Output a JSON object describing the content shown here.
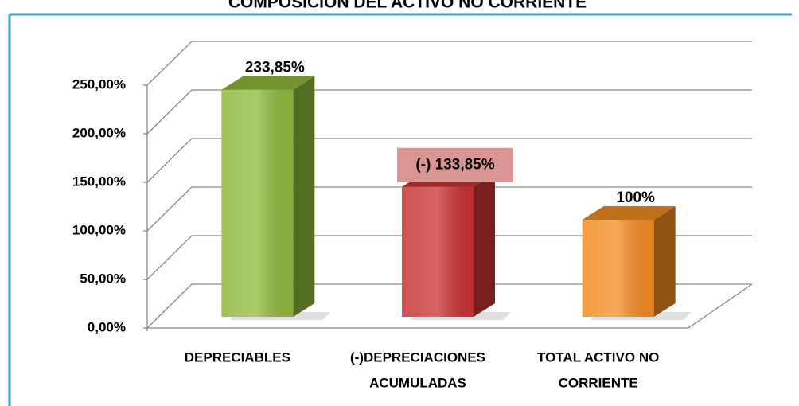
{
  "chart_data": {
    "type": "bar3d",
    "title": "COMPOSICIÓN DEL ACTIVO NO CORRIENTE",
    "categories": [
      [
        "DEPRECIABLES"
      ],
      [
        "(-)DEPRECIACIONES",
        "ACUMULADAS"
      ],
      [
        "TOTAL ACTIVO NO",
        "CORRIENTE"
      ]
    ],
    "values": [
      233.85,
      133.85,
      100
    ],
    "value_labels": [
      "233,85%",
      "(-) 133,85%",
      "100%"
    ],
    "colors": [
      "#8fb83c",
      "#c93232",
      "#f28b22"
    ],
    "ylim": [
      0,
      250
    ],
    "yticks": [
      {
        "value": 0,
        "label": "0,00%"
      },
      {
        "value": 50,
        "label": "50,00%"
      },
      {
        "value": 100,
        "label": "100,00%"
      },
      {
        "value": 150,
        "label": "150,00%"
      },
      {
        "value": 200,
        "label": "200,00%"
      },
      {
        "value": 250,
        "label": "250,00%"
      }
    ],
    "grid": true
  }
}
